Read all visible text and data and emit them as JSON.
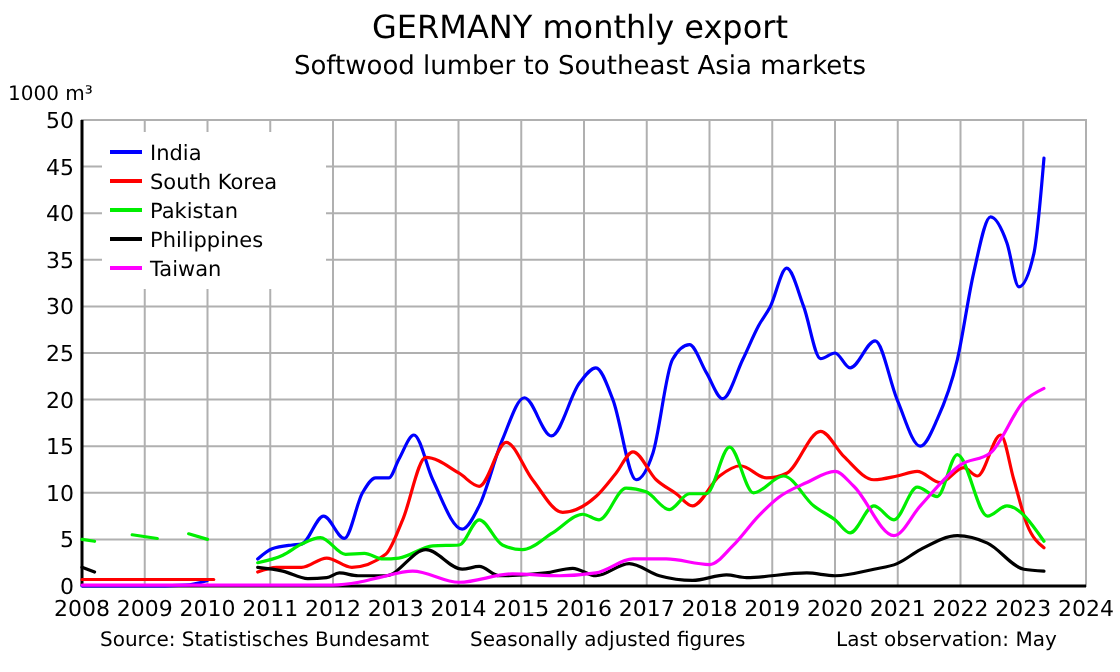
{
  "chart_data": {
    "type": "line",
    "title": "GERMANY monthly export",
    "subtitle": "Softwood lumber to Southeast Asia markets",
    "ylabel": "1000 m³",
    "annotations": [
      "Source: Statistisches Bundesamt",
      "Seasonally adjusted figures",
      "Last observation: May"
    ],
    "xlim": [
      2008,
      2024
    ],
    "xticks": [
      2008,
      2009,
      2010,
      2011,
      2012,
      2013,
      2014,
      2015,
      2016,
      2017,
      2018,
      2019,
      2020,
      2021,
      2022,
      2023,
      2024
    ],
    "ylim": [
      0,
      50
    ],
    "yticks": [
      0,
      5,
      10,
      15,
      20,
      25,
      30,
      35,
      40,
      45,
      50
    ],
    "grid": true,
    "legend": "top left",
    "marker": "none",
    "line_style": "solid",
    "series": [
      {
        "name": "India",
        "color": "#0000ff",
        "x": [
          2008,
          2009,
          2009.65,
          2010,
          2010.4,
          2010.8,
          2011.03,
          2011.35,
          2011.5,
          2011.85,
          2012.18,
          2012.47,
          2012.68,
          2012.89,
          2013.05,
          2013.29,
          2013.59,
          2014.06,
          2014.33,
          2014.7,
          2015.05,
          2015.48,
          2015.93,
          2016.19,
          2016.46,
          2016.83,
          2017.1,
          2017.41,
          2017.68,
          2017.95,
          2018.21,
          2018.53,
          2018.78,
          2018.97,
          2019.23,
          2019.5,
          2019.77,
          2020,
          2020.24,
          2020.64,
          2020.99,
          2021.36,
          2021.63,
          2021.95,
          2022.21,
          2022.48,
          2022.74,
          2022.93,
          2023.17,
          2023.33
        ],
        "values": [
          0,
          0,
          0.1,
          0.6,
          null,
          2.9,
          4,
          4.4,
          4.5,
          7.5,
          5.1,
          10,
          11.6,
          11.6,
          13.6,
          16.2,
          11.4,
          6.1,
          8.6,
          15.7,
          20.2,
          16.1,
          21.8,
          23.4,
          20,
          11.4,
          14.3,
          24.3,
          25.9,
          22.9,
          20.1,
          24.3,
          27.9,
          30,
          34.1,
          30,
          24.4,
          25,
          23.4,
          26.3,
          20,
          15,
          17.9,
          24.3,
          33.6,
          39.6,
          36.8,
          32.1,
          35.7,
          45.9
        ]
      },
      {
        "name": "South Korea",
        "color": "#ff0000",
        "x": [
          2008,
          2010.1,
          2010.4,
          2010.8,
          2011.1,
          2011.5,
          2011.9,
          2012.3,
          2012.84,
          2013.11,
          2013.48,
          2014.01,
          2014.33,
          2014.76,
          2015.18,
          2015.66,
          2016.19,
          2016.51,
          2016.78,
          2017.15,
          2017.47,
          2017.73,
          2018.16,
          2018.49,
          2018.91,
          2019.23,
          2019.77,
          2020.14,
          2020.62,
          2020.99,
          2021.31,
          2021.68,
          2022.05,
          2022.27,
          2022.64,
          2022.85,
          2023.06,
          2023.33
        ],
        "values": [
          0.7,
          0.7,
          null,
          1.5,
          2,
          2,
          3,
          2,
          3.4,
          7.1,
          13.8,
          12.1,
          10.7,
          15.4,
          11.4,
          7.9,
          9.6,
          12.1,
          14.4,
          11.4,
          9.9,
          8.6,
          11.8,
          12.9,
          11.6,
          12.1,
          16.6,
          13.9,
          11.4,
          11.8,
          12.3,
          11.1,
          12.7,
          11.8,
          16.2,
          11.4,
          6.6,
          4.1
        ]
      },
      {
        "name": "Pakistan",
        "color": "#00ee00",
        "x": [
          2008,
          2008.2,
          2008.5,
          2008.8,
          2009.2,
          2009.45,
          2009.7,
          2010,
          2010.4,
          2010.8,
          2011.2,
          2011.5,
          2011.8,
          2012.2,
          2012.5,
          2012.8,
          2013.05,
          2013.59,
          2014.01,
          2014.33,
          2014.7,
          2015.02,
          2015.5,
          2015.98,
          2016.24,
          2016.67,
          2016.99,
          2017.36,
          2017.68,
          2017.95,
          2018.32,
          2018.7,
          2019.18,
          2019.66,
          2020,
          2020.24,
          2020.62,
          2020.94,
          2021.31,
          2021.63,
          2021.95,
          2022.43,
          2022.74,
          2023.33
        ],
        "values": [
          5,
          4.8,
          null,
          5.5,
          5.1,
          null,
          5.6,
          5,
          null,
          2.5,
          3.3,
          4.5,
          5.2,
          3.4,
          3.5,
          2.9,
          3,
          4.3,
          4.4,
          7.1,
          4.4,
          3.9,
          5.7,
          7.7,
          7.1,
          10.5,
          10.1,
          8.2,
          9.9,
          9.9,
          14.9,
          10,
          11.8,
          8.6,
          7.1,
          5.7,
          8.6,
          7.1,
          10.6,
          9.6,
          14.1,
          7.5,
          8.6,
          4.8
        ]
      },
      {
        "name": "Philippines",
        "color": "#000000",
        "x": [
          2008,
          2008.2,
          2010.4,
          2010.8,
          2011.2,
          2011.6,
          2011.9,
          2012.1,
          2012.4,
          2012.84,
          2013.48,
          2014.06,
          2014.33,
          2014.65,
          2015.39,
          2015.82,
          2016.19,
          2016.72,
          2017.2,
          2017.73,
          2018.27,
          2018.59,
          2019.55,
          2020,
          2020.62,
          2020.99,
          2021.36,
          2021.95,
          2022.43,
          2023.01,
          2023.33
        ],
        "values": [
          2,
          1.5,
          null,
          2,
          1.6,
          0.8,
          0.9,
          1.4,
          1.1,
          1.1,
          3.9,
          1.8,
          2.1,
          1.1,
          1.4,
          1.9,
          1.1,
          2.4,
          1.1,
          0.6,
          1.2,
          0.9,
          1.4,
          1.1,
          1.8,
          2.4,
          3.9,
          5.4,
          4.6,
          1.8,
          1.6
        ]
      },
      {
        "name": "Taiwan",
        "color": "#ff00ff",
        "x": [
          2008,
          2010,
          2012,
          2012.41,
          2012.73,
          2013.27,
          2014.01,
          2014.86,
          2015.61,
          2016.19,
          2016.78,
          2017.31,
          2018,
          2018.37,
          2018.78,
          2019.1,
          2019.55,
          2020,
          2020.3,
          2020.94,
          2021.36,
          2022,
          2022.48,
          2023.01,
          2023.33
        ],
        "values": [
          0.1,
          0.1,
          0.1,
          0.4,
          0.9,
          1.6,
          0.4,
          1.3,
          1.1,
          1.4,
          2.9,
          2.9,
          2.3,
          4.3,
          7.5,
          9.5,
          11.1,
          12.3,
          10.7,
          5.4,
          8.6,
          13,
          14.3,
          19.8,
          21.2
        ]
      }
    ]
  }
}
